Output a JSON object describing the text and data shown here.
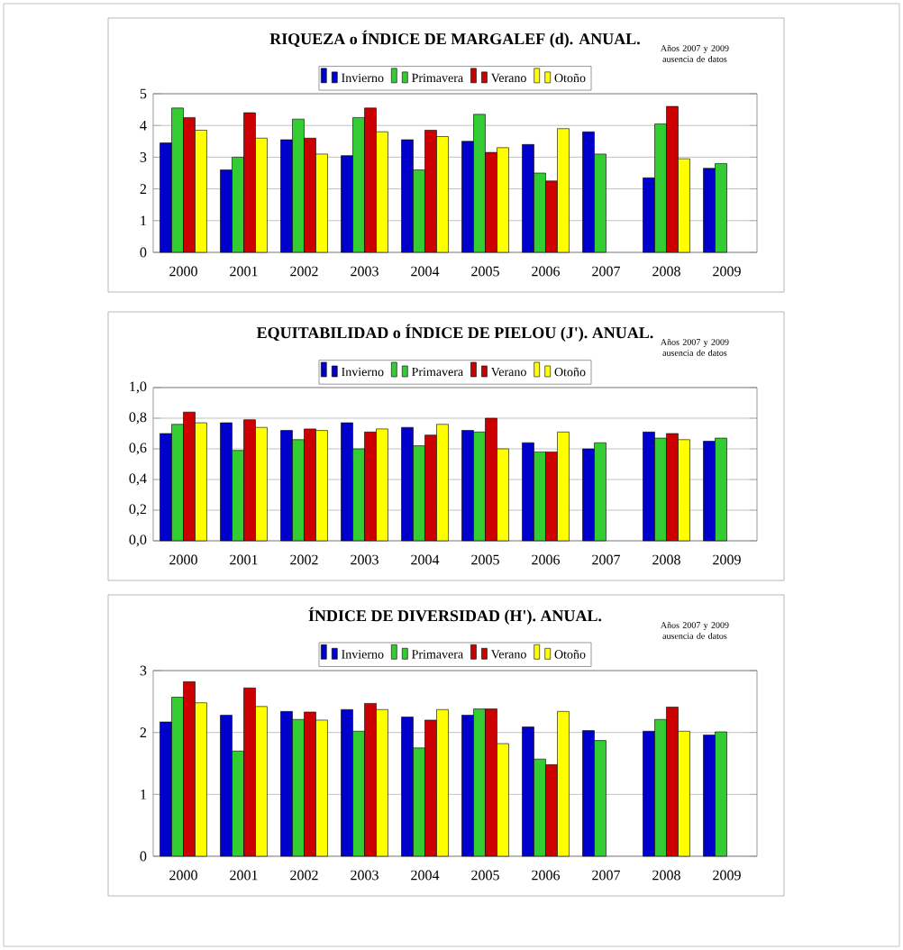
{
  "chart_data": [
    {
      "type": "bar",
      "title": "RIQUEZA o ÍNDICE DE MARGALEF (d). ANUAL.",
      "annotations": [
        "Años 2007 y 2009 ausencia de datos"
      ],
      "categories": [
        "2000",
        "2001",
        "2002",
        "2003",
        "2004",
        "2005",
        "2006",
        "2007",
        "2008",
        "2009"
      ],
      "ylim": [
        0,
        5
      ],
      "yticks": [
        0,
        1,
        2,
        3,
        4,
        5
      ],
      "grid": "y",
      "legend": "top",
      "series": [
        {
          "name": "Invierno",
          "color": "#0000cc",
          "values": [
            3.45,
            2.6,
            3.55,
            3.05,
            3.55,
            3.5,
            3.4,
            3.8,
            2.35,
            2.65
          ]
        },
        {
          "name": "Primavera",
          "color": "#33cc33",
          "values": [
            4.55,
            3.0,
            4.2,
            4.25,
            2.6,
            4.35,
            2.5,
            3.1,
            4.05,
            2.8
          ]
        },
        {
          "name": "Verano",
          "color": "#cc0000",
          "values": [
            4.25,
            4.4,
            3.6,
            4.55,
            3.85,
            3.15,
            2.25,
            null,
            4.6,
            null
          ]
        },
        {
          "name": "Otoño",
          "color": "#ffff00",
          "values": [
            3.85,
            3.6,
            3.1,
            3.8,
            3.65,
            3.3,
            3.9,
            null,
            2.95,
            null
          ]
        }
      ]
    },
    {
      "type": "bar",
      "title": "EQUITABILIDAD o ÍNDICE DE PIELOU (J'). ANUAL.",
      "annotations": [
        "Años 2007 y 2009 ausencia de datos"
      ],
      "categories": [
        "2000",
        "2001",
        "2002",
        "2003",
        "2004",
        "2005",
        "2006",
        "2007",
        "2008",
        "2009"
      ],
      "ylim": [
        0,
        1
      ],
      "yticks": [
        {
          "value": 0,
          "label": "0,0"
        },
        {
          "value": 0.2,
          "label": "0,2"
        },
        {
          "value": 0.4,
          "label": "0,4"
        },
        {
          "value": 0.6,
          "label": "0,6"
        },
        {
          "value": 0.8,
          "label": "0,8"
        },
        {
          "value": 1,
          "label": "1,0"
        }
      ],
      "grid": "y",
      "legend": "top",
      "series": [
        {
          "name": "Invierno",
          "color": "#0000cc",
          "values": [
            0.7,
            0.77,
            0.72,
            0.77,
            0.74,
            0.72,
            0.64,
            0.6,
            0.71,
            0.65
          ]
        },
        {
          "name": "Primavera",
          "color": "#33cc33",
          "values": [
            0.76,
            0.59,
            0.66,
            0.6,
            0.62,
            0.71,
            0.58,
            0.64,
            0.67,
            0.67
          ]
        },
        {
          "name": "Verano",
          "color": "#cc0000",
          "values": [
            0.84,
            0.79,
            0.73,
            0.71,
            0.69,
            0.8,
            0.58,
            null,
            0.7,
            null
          ]
        },
        {
          "name": "Otoño",
          "color": "#ffff00",
          "values": [
            0.77,
            0.74,
            0.72,
            0.73,
            0.76,
            0.6,
            0.71,
            null,
            0.66,
            null
          ]
        }
      ]
    },
    {
      "type": "bar",
      "title": "ÍNDICE DE DIVERSIDAD (H'). ANUAL.",
      "annotations": [
        "Años 2007 y 2009 ausencia de datos"
      ],
      "categories": [
        "2000",
        "2001",
        "2002",
        "2003",
        "2004",
        "2005",
        "2006",
        "2007",
        "2008",
        "2009"
      ],
      "ylim": [
        0,
        3
      ],
      "yticks": [
        0,
        1,
        2,
        3
      ],
      "grid": "y",
      "legend": "top",
      "series": [
        {
          "name": "Invierno",
          "color": "#0000cc",
          "values": [
            2.17,
            2.28,
            2.34,
            2.37,
            2.25,
            2.28,
            2.09,
            2.03,
            2.02,
            1.96
          ]
        },
        {
          "name": "Primavera",
          "color": "#33cc33",
          "values": [
            2.57,
            1.7,
            2.21,
            2.02,
            1.75,
            2.38,
            1.57,
            1.87,
            2.21,
            2.01
          ]
        },
        {
          "name": "Verano",
          "color": "#cc0000",
          "values": [
            2.82,
            2.72,
            2.33,
            2.47,
            2.2,
            2.38,
            1.48,
            null,
            2.41,
            null
          ]
        },
        {
          "name": "Otoño",
          "color": "#ffff00",
          "values": [
            2.48,
            2.42,
            2.2,
            2.37,
            2.37,
            1.82,
            2.34,
            null,
            2.02,
            null
          ]
        }
      ]
    }
  ]
}
